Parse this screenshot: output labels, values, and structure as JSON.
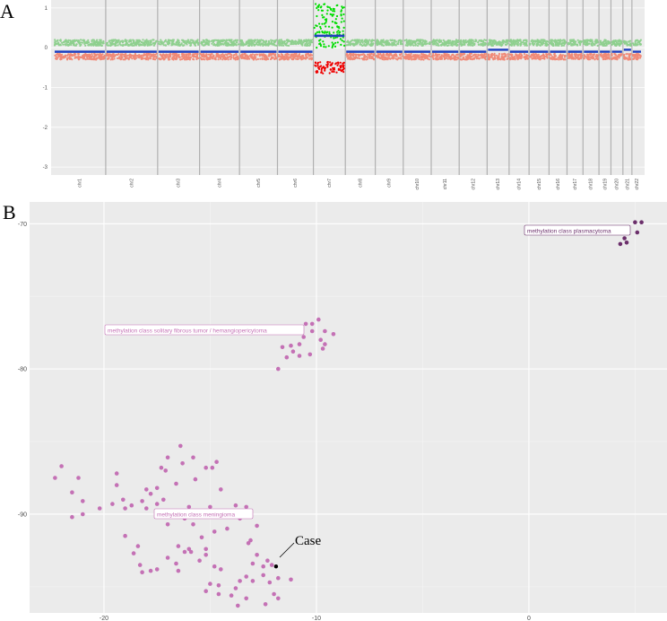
{
  "chart_data": [
    {
      "type": "scatter",
      "panel": "A",
      "title": "",
      "xlabel": "",
      "ylabel": "",
      "ylim": [
        -3.2,
        1.2
      ],
      "yticks": [
        1,
        0,
        -1,
        -2,
        -3
      ],
      "chromosomes": [
        "chr1",
        "chr2",
        "chr3",
        "chr4",
        "chr5",
        "chr6",
        "chr7",
        "chr8",
        "chr9",
        "chr10",
        "chr11",
        "chr12",
        "chr13",
        "chr14",
        "chr15",
        "chr16",
        "chr17",
        "chr18",
        "chr19",
        "chr20",
        "chr21",
        "chr22"
      ],
      "chromosome_rel_width": [
        2.6,
        2.6,
        2.1,
        2.0,
        1.9,
        1.8,
        1.6,
        1.5,
        1.4,
        1.4,
        1.4,
        1.4,
        1.1,
        1.0,
        1.0,
        0.9,
        0.8,
        0.8,
        0.6,
        0.6,
        0.45,
        0.5
      ],
      "segment_means": [
        -0.1,
        -0.1,
        -0.1,
        -0.1,
        -0.1,
        -0.1,
        0.3,
        -0.1,
        -0.1,
        -0.1,
        -0.1,
        -0.1,
        -0.05,
        -0.1,
        -0.1,
        -0.1,
        -0.1,
        -0.1,
        -0.1,
        -0.1,
        -0.05,
        -0.1
      ],
      "grid": true,
      "colors": {
        "gain": "#00dd00",
        "loss": "#ee0000",
        "gain_light": "#8fd08f",
        "loss_light": "#f08a78",
        "segment": "#1f3fbf",
        "separator": "#b0b0b0",
        "panel_bg": "#ebebeb"
      }
    },
    {
      "type": "scatter",
      "panel": "B",
      "title": "",
      "xlabel": "",
      "ylabel": "",
      "xlim": [
        -23.5,
        6.5
      ],
      "ylim": [
        -96.8,
        -68.5
      ],
      "xticks": [
        -20,
        -10,
        0
      ],
      "yticks": [
        -70,
        -80,
        -90
      ],
      "grid": true,
      "series": [
        {
          "name": "methylation class plasmacytoma",
          "color": "#6b2f6b",
          "points": [
            [
              5.0,
              -69.9
            ],
            [
              5.3,
              -69.9
            ],
            [
              4.5,
              -70.6
            ],
            [
              5.1,
              -70.6
            ],
            [
              4.5,
              -71.0
            ],
            [
              4.6,
              -71.3
            ],
            [
              4.3,
              -71.4
            ]
          ]
        },
        {
          "name": "methylation class solitary fibrous tumor / hemangiopericytoma",
          "color": "#c471b5",
          "points": [
            [
              -10.5,
              -76.9
            ],
            [
              -10.2,
              -76.9
            ],
            [
              -9.9,
              -76.6
            ],
            [
              -9.6,
              -77.4
            ],
            [
              -9.2,
              -77.6
            ],
            [
              -10.2,
              -77.4
            ],
            [
              -10.6,
              -77.8
            ],
            [
              -9.8,
              -78.0
            ],
            [
              -9.6,
              -78.3
            ],
            [
              -10.8,
              -78.3
            ],
            [
              -11.2,
              -78.4
            ],
            [
              -11.6,
              -78.5
            ],
            [
              -11.1,
              -78.8
            ],
            [
              -10.3,
              -79.0
            ],
            [
              -9.7,
              -78.6
            ],
            [
              -10.8,
              -79.1
            ],
            [
              -11.4,
              -79.2
            ],
            [
              -11.8,
              -80.0
            ]
          ]
        },
        {
          "name": "methylation class meningioma",
          "color": "#c471b5",
          "points": [
            [
              -22.3,
              -87.5
            ],
            [
              -22.0,
              -86.7
            ],
            [
              -21.5,
              -88.5
            ],
            [
              -21.2,
              -87.5
            ],
            [
              -21.0,
              -89.1
            ],
            [
              -21.0,
              -90.0
            ],
            [
              -21.5,
              -90.2
            ],
            [
              -20.2,
              -89.6
            ],
            [
              -19.6,
              -89.3
            ],
            [
              -19.4,
              -88.0
            ],
            [
              -19.4,
              -87.2
            ],
            [
              -19.1,
              -89.0
            ],
            [
              -19.0,
              -89.6
            ],
            [
              -18.7,
              -89.4
            ],
            [
              -18.4,
              -92.2
            ],
            [
              -18.6,
              -92.7
            ],
            [
              -19.0,
              -91.5
            ],
            [
              -18.2,
              -89.1
            ],
            [
              -18.0,
              -88.3
            ],
            [
              -18.0,
              -89.6
            ],
            [
              -17.8,
              -88.6
            ],
            [
              -17.5,
              -88.2
            ],
            [
              -17.5,
              -89.3
            ],
            [
              -17.3,
              -86.8
            ],
            [
              -17.0,
              -86.1
            ],
            [
              -17.1,
              -87.0
            ],
            [
              -16.6,
              -87.9
            ],
            [
              -16.4,
              -85.3
            ],
            [
              -16.3,
              -86.5
            ],
            [
              -16.0,
              -89.5
            ],
            [
              -15.8,
              -86.1
            ],
            [
              -15.7,
              -87.6
            ],
            [
              -15.2,
              -86.8
            ],
            [
              -14.9,
              -86.8
            ],
            [
              -14.7,
              -86.4
            ],
            [
              -14.5,
              -88.3
            ],
            [
              -15.0,
              -89.5
            ],
            [
              -15.5,
              -90.0
            ],
            [
              -15.8,
              -90.7
            ],
            [
              -16.2,
              -90.3
            ],
            [
              -16.8,
              -89.8
            ],
            [
              -17.2,
              -89.0
            ],
            [
              -17.5,
              -90.0
            ],
            [
              -17.0,
              -90.7
            ],
            [
              -16.5,
              -92.2
            ],
            [
              -16.2,
              -92.6
            ],
            [
              -15.9,
              -92.6
            ],
            [
              -15.5,
              -93.2
            ],
            [
              -15.2,
              -92.8
            ],
            [
              -14.8,
              -93.6
            ],
            [
              -14.5,
              -93.8
            ],
            [
              -15.0,
              -94.8
            ],
            [
              -15.2,
              -95.3
            ],
            [
              -14.6,
              -95.5
            ],
            [
              -14.0,
              -95.6
            ],
            [
              -13.7,
              -96.3
            ],
            [
              -13.3,
              -95.8
            ],
            [
              -13.0,
              -94.6
            ],
            [
              -13.3,
              -94.3
            ],
            [
              -13.6,
              -94.6
            ],
            [
              -13.0,
              -93.4
            ],
            [
              -12.8,
              -92.8
            ],
            [
              -12.5,
              -93.6
            ],
            [
              -12.5,
              -94.2
            ],
            [
              -12.2,
              -94.7
            ],
            [
              -12.0,
              -95.5
            ],
            [
              -11.8,
              -95.8
            ],
            [
              -12.4,
              -96.2
            ],
            [
              -11.2,
              -94.5
            ],
            [
              -11.8,
              -94.4
            ],
            [
              -12.1,
              -93.5
            ],
            [
              -12.3,
              -93.2
            ],
            [
              -13.8,
              -89.4
            ],
            [
              -13.3,
              -89.5
            ],
            [
              -13.8,
              -89.8
            ],
            [
              -13.6,
              -90.3
            ],
            [
              -13.1,
              -91.8
            ],
            [
              -13.2,
              -92.0
            ],
            [
              -12.8,
              -90.8
            ],
            [
              -14.8,
              -91.2
            ],
            [
              -14.2,
              -91.0
            ],
            [
              -15.4,
              -91.6
            ],
            [
              -16.0,
              -92.4
            ],
            [
              -16.6,
              -93.4
            ],
            [
              -16.5,
              -93.9
            ],
            [
              -17.0,
              -93.0
            ],
            [
              -17.8,
              -93.9
            ],
            [
              -18.3,
              -93.5
            ],
            [
              -18.2,
              -94.0
            ],
            [
              -17.5,
              -93.8
            ],
            [
              -15.2,
              -92.4
            ],
            [
              -14.6,
              -94.9
            ],
            [
              -13.8,
              -95.1
            ]
          ]
        },
        {
          "name": "Case",
          "color": "#000000",
          "points": [
            [
              -11.9,
              -93.6
            ]
          ]
        }
      ]
    }
  ],
  "labels": {
    "panel_a": "A",
    "panel_b": "B",
    "annotation_plasmacytoma": "methylation class plasmacytoma",
    "annotation_sft": "methylation class solitary fibrous tumor / hemangiopericytoma",
    "annotation_meningioma": "methylation class meningioma",
    "annotation_case": "Case"
  }
}
